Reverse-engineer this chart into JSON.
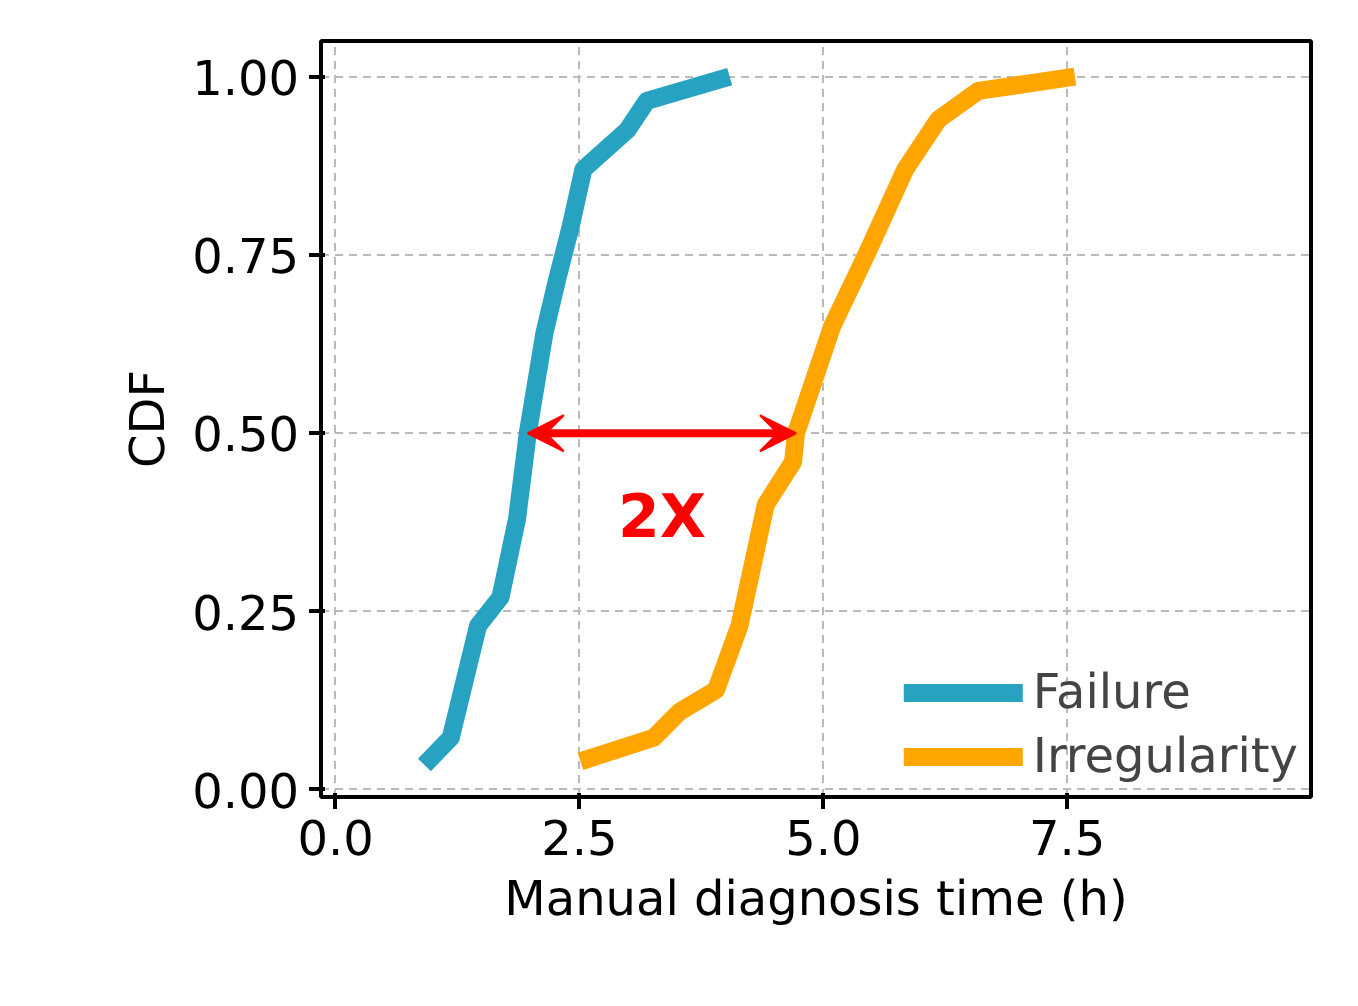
{
  "chart_data": {
    "type": "line",
    "xlabel": "Manual diagnosis time (h)",
    "ylabel": "CDF",
    "xlim": [
      -0.15,
      10
    ],
    "ylim": [
      -0.01,
      1.05
    ],
    "xticks": [
      {
        "value": 0,
        "label": "0.0"
      },
      2.5,
      {
        "value": 5,
        "label": "5.0"
      },
      7.5
    ],
    "yticks": [
      {
        "value": 0,
        "label": "0.00"
      },
      0.25,
      {
        "value": 0.5,
        "label": "0.50"
      },
      0.75,
      {
        "value": 1,
        "label": "1.00"
      }
    ],
    "grid": true,
    "legend": "bottom right",
    "line_style": "solid",
    "series": [
      {
        "name": "Failure",
        "color": "#27a2c0",
        "x": [
          0.91,
          1.18,
          1.46,
          1.69,
          1.86,
          1.97,
          2.14,
          2.27,
          2.41,
          2.54,
          2.99,
          3.19,
          4.04
        ],
        "values": [
          0.035,
          0.073,
          0.23,
          0.27,
          0.38,
          0.5,
          0.64,
          0.715,
          0.79,
          0.87,
          0.925,
          0.966,
          1.0
        ]
      },
      {
        "name": "Irregularity",
        "color": "#ffa500",
        "x": [
          2.51,
          3.26,
          3.53,
          3.9,
          4.14,
          4.41,
          4.69,
          4.72,
          5.09,
          5.44,
          5.84,
          6.18,
          6.59,
          7.58
        ],
        "values": [
          0.04,
          0.073,
          0.11,
          0.14,
          0.23,
          0.4,
          0.46,
          0.5,
          0.65,
          0.75,
          0.87,
          0.94,
          0.98,
          1.0
        ]
      }
    ],
    "annotations": [
      "2X"
    ]
  }
}
